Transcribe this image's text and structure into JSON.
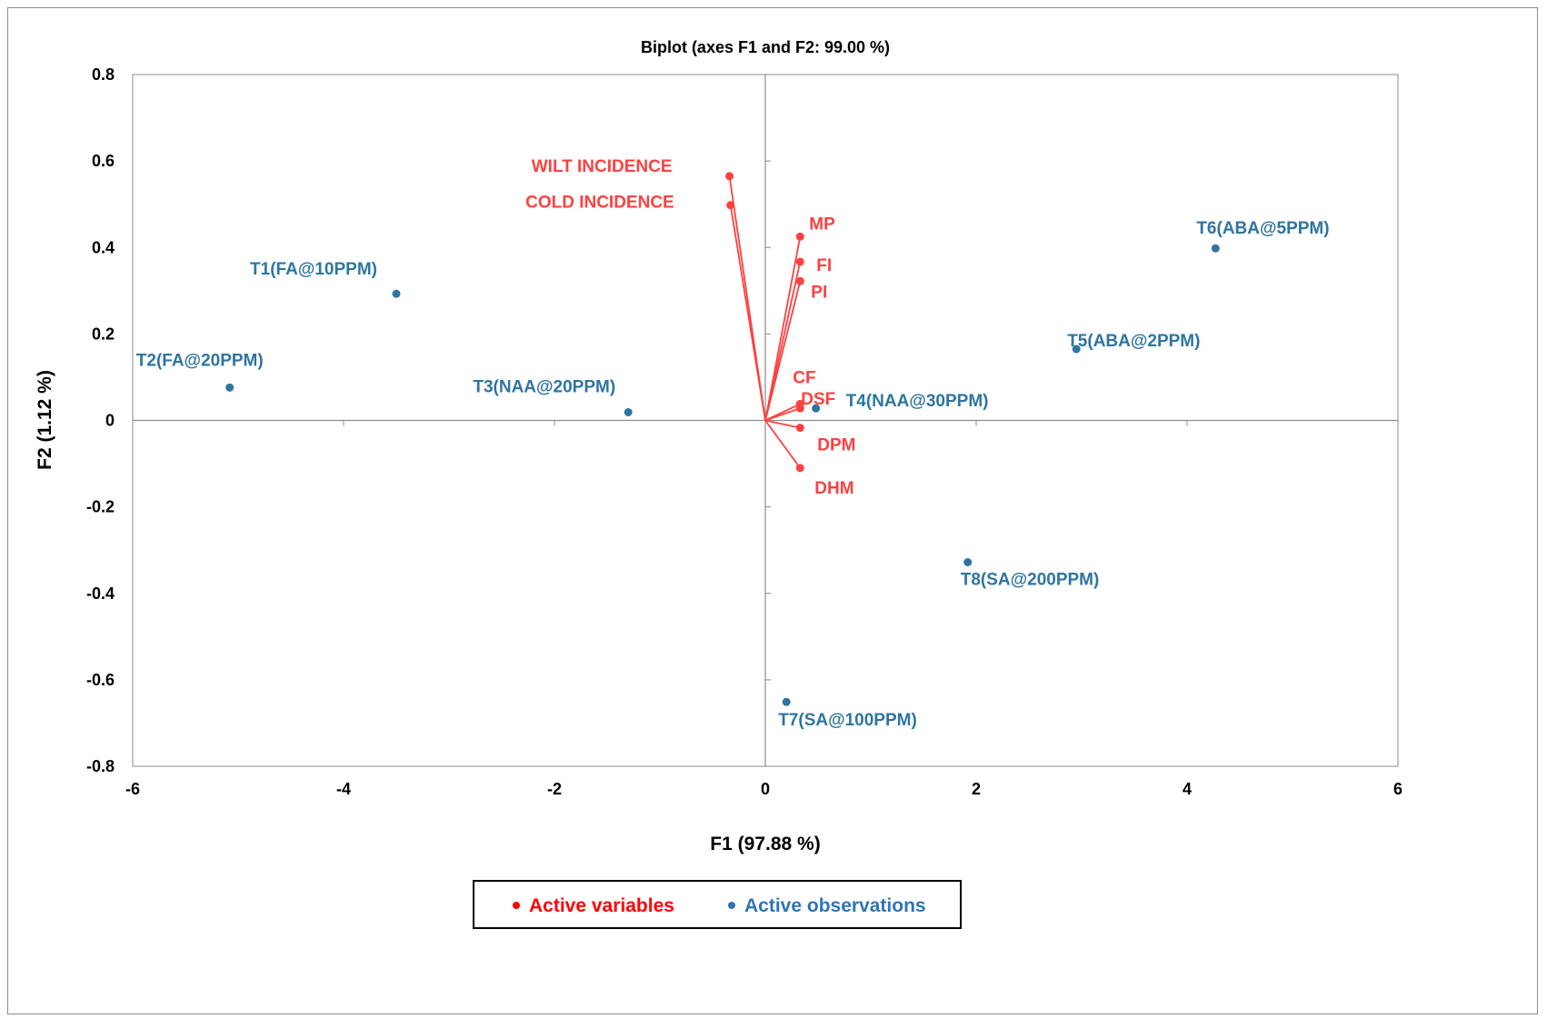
{
  "chart_data": {
    "type": "scatter",
    "title": "Biplot (axes F1 and F2: 99.00 %)",
    "xlabel": "F1 (97.88 %)",
    "ylabel": "F2 (1.12 %)",
    "xlim": [
      -6,
      6
    ],
    "ylim": [
      -0.8,
      0.8
    ],
    "xticks": [
      "-6",
      "-4",
      "-2",
      "0",
      "2",
      "4",
      "6"
    ],
    "yticks": [
      "0.8",
      "0.6",
      "0.4",
      "0.2",
      "0",
      "-0.2",
      "-0.4",
      "-0.6",
      "-0.8"
    ],
    "xtick_values": [
      -6,
      -4,
      -2,
      0,
      2,
      4,
      6
    ],
    "ytick_values": [
      0.8,
      0.6,
      0.4,
      0.2,
      0,
      -0.2,
      -0.4,
      -0.6,
      -0.8
    ],
    "grid": false,
    "legend_position": "bottom-center",
    "series": [
      {
        "name": "Active variables",
        "color": "#ff4040",
        "vectors": true,
        "points": [
          {
            "label": "WILT INCIDENCE",
            "x": -0.34,
            "y": 0.565
          },
          {
            "label": "COLD INCIDENCE",
            "x": -0.33,
            "y": 0.498
          },
          {
            "label": "MP",
            "x": 0.33,
            "y": 0.425
          },
          {
            "label": "FI",
            "x": 0.33,
            "y": 0.367
          },
          {
            "label": "PI",
            "x": 0.33,
            "y": 0.322
          },
          {
            "label": "CF",
            "x": 0.33,
            "y": 0.038
          },
          {
            "label": "DSF",
            "x": 0.33,
            "y": 0.028
          },
          {
            "label": "DPM",
            "x": 0.33,
            "y": -0.017
          },
          {
            "label": "DHM",
            "x": 0.33,
            "y": -0.11
          }
        ]
      },
      {
        "name": "Active observations",
        "color": "#2e75a0",
        "vectors": false,
        "points": [
          {
            "label": "T1(FA@10PPM)",
            "x": -3.5,
            "y": 0.293
          },
          {
            "label": "T2(FA@20PPM)",
            "x": -5.08,
            "y": 0.076
          },
          {
            "label": "T3(NAA@20PPM)",
            "x": -1.3,
            "y": 0.019
          },
          {
            "label": "T4(NAA@30PPM)",
            "x": 0.48,
            "y": 0.028
          },
          {
            "label": "T5(ABA@2PPM)",
            "x": 2.95,
            "y": 0.165
          },
          {
            "label": "T6(ABA@5PPM)",
            "x": 4.27,
            "y": 0.398
          },
          {
            "label": "T7(SA@100PPM)",
            "x": 0.2,
            "y": -0.651
          },
          {
            "label": "T8(SA@200PPM)",
            "x": 1.92,
            "y": -0.328
          }
        ]
      }
    ]
  },
  "legend": {
    "items": [
      {
        "label": "Active variables",
        "color": "#ff0000"
      },
      {
        "label": "Active observations",
        "color": "#2e75b6"
      }
    ]
  }
}
